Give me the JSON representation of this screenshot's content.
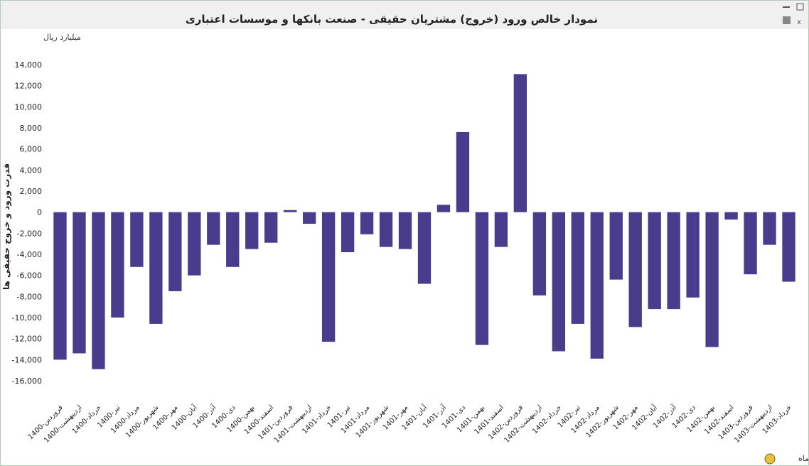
{
  "chart_data": {
    "type": "bar",
    "title": "نمودار خالص ورود (خروج) مشتریان حقیقی - صنعت بانکها و موسسات اعتباری",
    "unit_label": "میلیارد ریال",
    "y_label": "قدرت ورود و خروج حقیقی ها",
    "x_label": "ماه",
    "color": "#4a3c8c",
    "grid": false,
    "categories": [
      "1400-فروردین",
      "1400-اردیبهشت",
      "1400-خرداد",
      "1400-تیر",
      "1400-مرداد",
      "1400-شهریور",
      "1400-مهر",
      "1400-آبان",
      "1400-آذر",
      "1400-دی",
      "1400-بهمن",
      "1400-اسفند",
      "1401-فروردین",
      "1401-اردیبهشت",
      "1401-خرداد",
      "1401-تیر",
      "1401-مرداد",
      "1401-شهریور",
      "1401-مهر",
      "1401-آبان",
      "1401-آذر",
      "1401-دی",
      "1401-بهمن",
      "1401-اسفند",
      "1402-فروردین",
      "1402-اردیبهشت",
      "1402-خرداد",
      "1402-تیر",
      "1402-مرداد",
      "1402-شهریور",
      "1402-مهر",
      "1402-آبان",
      "1402-آذر",
      "1402-دی",
      "1402-بهمن",
      "1402-اسفند",
      "1403-فروردین",
      "1403-اردیبهشت",
      "1403-خرداد"
    ],
    "values": [
      -14000,
      -13400,
      -14900,
      -10000,
      -5200,
      -10600,
      -7500,
      -6000,
      -3100,
      -5200,
      -3500,
      -2900,
      200,
      -1100,
      -12300,
      -3800,
      -2100,
      -3300,
      -3500,
      -6800,
      700,
      7600,
      -12600,
      -3300,
      13100,
      -7900,
      -13200,
      -10600,
      -13900,
      -6400,
      -10900,
      -9200,
      -9200,
      -8100,
      -12800,
      -700,
      -5900,
      -3100,
      -6600
    ],
    "ylim": [
      -16000,
      14000
    ],
    "yticks": [
      {
        "value": -16000,
        "label": "-16,000"
      },
      {
        "value": -14000,
        "label": "-14,000"
      },
      {
        "value": -12000,
        "label": "-12,000"
      },
      {
        "value": -10000,
        "label": "-10,000"
      },
      {
        "value": -8000,
        "label": "-8,000"
      },
      {
        "value": -6000,
        "label": "-6,000"
      },
      {
        "value": -4000,
        "label": "-4,000"
      },
      {
        "value": -2000,
        "label": "-2,000"
      },
      0,
      {
        "value": 2000,
        "label": "2,000"
      },
      {
        "value": 4000,
        "label": "4,000"
      },
      {
        "value": 6000,
        "label": "6,000"
      },
      {
        "value": 8000,
        "label": "8,000"
      },
      {
        "value": 10000,
        "label": "10,000"
      },
      {
        "value": 12000,
        "label": "12,000"
      },
      {
        "value": 14000,
        "label": "14,000"
      }
    ]
  }
}
